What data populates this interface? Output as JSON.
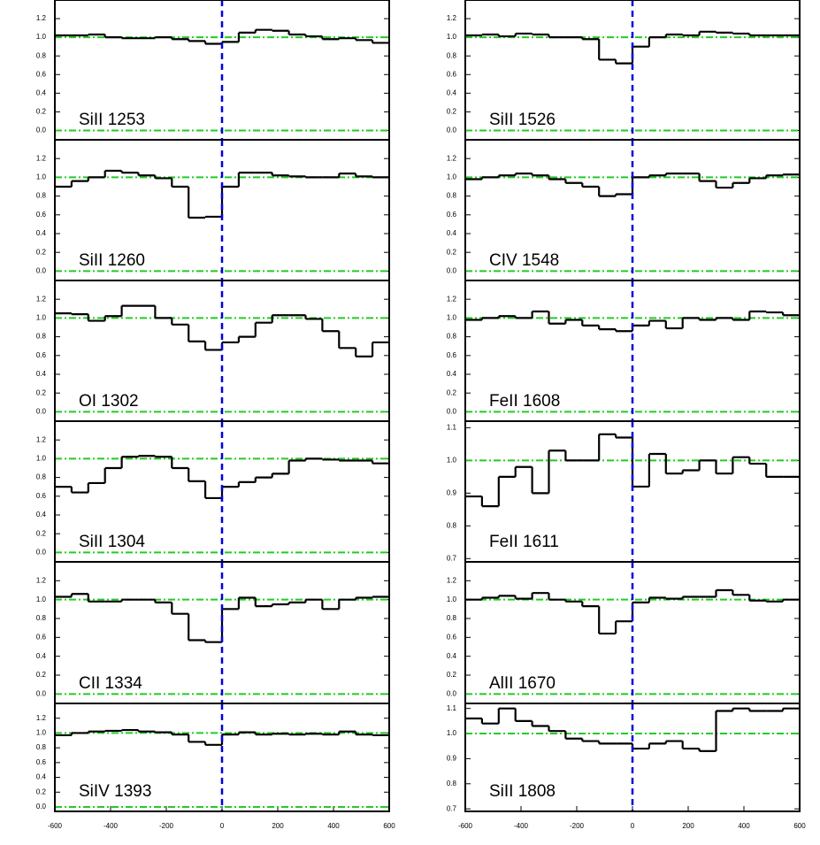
{
  "chart_data": [
    {
      "type": "step",
      "label": "SiII 1253",
      "x": [
        -570,
        -510,
        -450,
        -390,
        -330,
        -270,
        -210,
        -150,
        -90,
        -30,
        30,
        90,
        150,
        210,
        270,
        330,
        390,
        450,
        510,
        570
      ],
      "values": [
        1.02,
        1.02,
        1.03,
        1.0,
        0.99,
        0.99,
        1.0,
        0.98,
        0.96,
        0.93,
        0.95,
        1.05,
        1.08,
        1.07,
        1.03,
        1.01,
        0.98,
        0.99,
        0.97,
        0.94
      ],
      "color": "#000000",
      "xlim": [
        -600,
        600
      ],
      "ylim": [
        -0.1,
        1.4
      ],
      "yticks": [
        {
          "value": 0,
          "label": "0.0"
        },
        0.2,
        0.4,
        0.6,
        0.8,
        {
          "value": 1,
          "label": "1.0"
        },
        1.2
      ],
      "vline": 0,
      "hlines": [
        0,
        1
      ]
    },
    {
      "type": "step",
      "label": "SiII 1526",
      "x": [
        -570,
        -510,
        -450,
        -390,
        -330,
        -270,
        -210,
        -150,
        -90,
        -30,
        30,
        90,
        150,
        210,
        270,
        330,
        390,
        450,
        510,
        570
      ],
      "values": [
        1.02,
        1.03,
        1.01,
        1.04,
        1.03,
        1.0,
        1.0,
        0.98,
        0.76,
        0.72,
        0.9,
        1.0,
        1.03,
        1.02,
        1.06,
        1.05,
        1.04,
        1.02,
        1.02,
        1.02
      ],
      "color": "#000000",
      "xlim": [
        -600,
        600
      ],
      "ylim": [
        -0.1,
        1.4
      ],
      "yticks": [
        {
          "value": 0,
          "label": "0.0"
        },
        0.2,
        0.4,
        0.6,
        0.8,
        {
          "value": 1,
          "label": "1.0"
        },
        1.2
      ],
      "vline": 0,
      "hlines": [
        0,
        1
      ]
    },
    {
      "type": "step",
      "label": "SiII 1260",
      "x": [
        -570,
        -510,
        -450,
        -390,
        -330,
        -270,
        -210,
        -150,
        -90,
        -30,
        30,
        90,
        150,
        210,
        270,
        330,
        390,
        450,
        510,
        570
      ],
      "values": [
        0.9,
        0.96,
        1.0,
        1.07,
        1.05,
        1.02,
        0.99,
        0.9,
        0.57,
        0.58,
        0.9,
        1.05,
        1.05,
        1.02,
        1.01,
        1.0,
        1.0,
        1.04,
        1.01,
        1.0
      ],
      "color": "#000000",
      "xlim": [
        -600,
        600
      ],
      "ylim": [
        -0.1,
        1.4
      ],
      "yticks": [
        {
          "value": 0,
          "label": "0.0"
        },
        0.2,
        0.4,
        0.6,
        0.8,
        {
          "value": 1,
          "label": "1.0"
        },
        1.2
      ],
      "vline": 0,
      "hlines": [
        0,
        1
      ]
    },
    {
      "type": "step",
      "label": "CIV 1548",
      "x": [
        -570,
        -510,
        -450,
        -390,
        -330,
        -270,
        -210,
        -150,
        -90,
        -30,
        30,
        90,
        150,
        210,
        270,
        330,
        390,
        450,
        510,
        570
      ],
      "values": [
        0.98,
        1.0,
        1.02,
        1.04,
        1.02,
        0.98,
        0.94,
        0.9,
        0.8,
        0.82,
        1.0,
        1.02,
        1.04,
        1.04,
        0.96,
        0.89,
        0.94,
        0.99,
        1.02,
        1.03
      ],
      "color": "#000000",
      "xlim": [
        -600,
        600
      ],
      "ylim": [
        -0.1,
        1.4
      ],
      "yticks": [
        {
          "value": 0,
          "label": "0.0"
        },
        0.2,
        0.4,
        0.6,
        0.8,
        {
          "value": 1,
          "label": "1.0"
        },
        1.2
      ],
      "vline": 0,
      "hlines": [
        0,
        1
      ]
    },
    {
      "type": "step",
      "label": "OI 1302",
      "x": [
        -570,
        -510,
        -450,
        -390,
        -330,
        -270,
        -210,
        -150,
        -90,
        -30,
        30,
        90,
        150,
        210,
        270,
        330,
        390,
        450,
        510,
        570
      ],
      "values": [
        1.05,
        1.04,
        0.97,
        1.02,
        1.13,
        1.13,
        1.0,
        0.93,
        0.75,
        0.66,
        0.74,
        0.8,
        0.95,
        1.03,
        1.03,
        0.99,
        0.86,
        0.68,
        0.59,
        0.74
      ],
      "color": "#000000",
      "xlim": [
        -600,
        600
      ],
      "ylim": [
        -0.1,
        1.4
      ],
      "yticks": [
        {
          "value": 0,
          "label": "0.0"
        },
        0.2,
        0.4,
        0.6,
        0.8,
        {
          "value": 1,
          "label": "1.0"
        },
        1.2
      ],
      "vline": 0,
      "hlines": [
        0,
        1
      ]
    },
    {
      "type": "step",
      "label": "FeII 1608",
      "x": [
        -570,
        -510,
        -450,
        -390,
        -330,
        -270,
        -210,
        -150,
        -90,
        -30,
        30,
        90,
        150,
        210,
        270,
        330,
        390,
        450,
        510,
        570
      ],
      "values": [
        0.98,
        1.0,
        1.02,
        1.0,
        1.07,
        0.94,
        0.98,
        0.92,
        0.88,
        0.86,
        0.92,
        0.97,
        0.89,
        1.0,
        0.98,
        1.0,
        0.98,
        1.07,
        1.06,
        1.03
      ],
      "color": "#000000",
      "xlim": [
        -600,
        600
      ],
      "ylim": [
        -0.1,
        1.4
      ],
      "yticks": [
        {
          "value": 0,
          "label": "0.0"
        },
        0.2,
        0.4,
        0.6,
        0.8,
        {
          "value": 1,
          "label": "1.0"
        },
        1.2
      ],
      "vline": 0,
      "hlines": [
        0,
        1
      ]
    },
    {
      "type": "step",
      "label": "SiII 1304",
      "x": [
        -570,
        -510,
        -450,
        -390,
        -330,
        -270,
        -210,
        -150,
        -90,
        -30,
        30,
        90,
        150,
        210,
        270,
        330,
        390,
        450,
        510,
        570
      ],
      "values": [
        0.7,
        0.64,
        0.74,
        0.9,
        1.02,
        1.03,
        1.02,
        0.9,
        0.76,
        0.58,
        0.7,
        0.75,
        0.8,
        0.84,
        0.98,
        1.0,
        0.99,
        0.98,
        0.98,
        0.95
      ],
      "color": "#000000",
      "xlim": [
        -600,
        600
      ],
      "ylim": [
        -0.1,
        1.4
      ],
      "yticks": [
        {
          "value": 0,
          "label": "0.0"
        },
        0.2,
        0.4,
        0.6,
        0.8,
        {
          "value": 1,
          "label": "1.0"
        },
        1.2
      ],
      "vline": 0,
      "hlines": [
        0,
        1
      ]
    },
    {
      "type": "step",
      "label": "FeII 1611",
      "x": [
        -570,
        -510,
        -450,
        -390,
        -330,
        -270,
        -210,
        -150,
        -90,
        -30,
        30,
        90,
        150,
        210,
        270,
        330,
        390,
        450,
        510,
        570
      ],
      "values": [
        0.89,
        0.86,
        0.95,
        0.98,
        0.9,
        1.03,
        1.0,
        1.0,
        1.08,
        1.07,
        0.92,
        1.02,
        0.96,
        0.97,
        1.0,
        0.96,
        1.01,
        0.99,
        0.95,
        0.95
      ],
      "color": "#000000",
      "xlim": [
        -600,
        600
      ],
      "ylim": [
        0.69,
        1.12
      ],
      "yticks": [
        0.7,
        0.8,
        0.9,
        {
          "value": 1,
          "label": "1.0"
        },
        1.1
      ],
      "vline": 0,
      "hlines": [
        1
      ]
    },
    {
      "type": "step",
      "label": "CII 1334",
      "x": [
        -570,
        -510,
        -450,
        -390,
        -330,
        -270,
        -210,
        -150,
        -90,
        -30,
        30,
        90,
        150,
        210,
        270,
        330,
        390,
        450,
        510,
        570
      ],
      "values": [
        1.03,
        1.06,
        0.98,
        0.98,
        1.0,
        1.0,
        0.97,
        0.85,
        0.57,
        0.55,
        0.9,
        1.02,
        0.93,
        0.95,
        0.97,
        1.0,
        0.9,
        1.0,
        1.02,
        1.03
      ],
      "color": "#000000",
      "xlim": [
        -600,
        600
      ],
      "ylim": [
        -0.1,
        1.4
      ],
      "yticks": [
        {
          "value": 0,
          "label": "0.0"
        },
        0.2,
        0.4,
        0.6,
        0.8,
        {
          "value": 1,
          "label": "1.0"
        },
        1.2
      ],
      "vline": 0,
      "hlines": [
        0,
        1
      ]
    },
    {
      "type": "step",
      "label": "AlII 1670",
      "x": [
        -570,
        -510,
        -450,
        -390,
        -330,
        -270,
        -210,
        -150,
        -90,
        -30,
        30,
        90,
        150,
        210,
        270,
        330,
        390,
        450,
        510,
        570
      ],
      "values": [
        1.0,
        1.02,
        1.04,
        1.01,
        1.07,
        1.0,
        0.98,
        0.93,
        0.64,
        0.77,
        0.97,
        1.02,
        1.01,
        1.03,
        1.03,
        1.1,
        1.05,
        0.99,
        0.98,
        1.0
      ],
      "color": "#000000",
      "xlim": [
        -600,
        600
      ],
      "ylim": [
        -0.1,
        1.4
      ],
      "yticks": [
        {
          "value": 0,
          "label": "0.0"
        },
        0.2,
        0.4,
        0.6,
        0.8,
        {
          "value": 1,
          "label": "1.0"
        },
        1.2
      ],
      "vline": 0,
      "hlines": [
        0,
        1
      ]
    },
    {
      "type": "step",
      "label": "SiIV 1393",
      "x": [
        -570,
        -510,
        -450,
        -390,
        -330,
        -270,
        -210,
        -150,
        -90,
        -30,
        30,
        90,
        150,
        210,
        270,
        330,
        390,
        450,
        510,
        570
      ],
      "values": [
        0.97,
        1.0,
        1.02,
        1.03,
        1.04,
        1.02,
        1.01,
        0.98,
        0.88,
        0.84,
        0.98,
        1.01,
        0.98,
        0.99,
        0.98,
        0.99,
        0.98,
        1.02,
        0.98,
        0.97
      ],
      "color": "#000000",
      "xlim": [
        -600,
        600
      ],
      "ylim": [
        -0.06,
        1.4
      ],
      "yticks": [
        {
          "value": 0,
          "label": "0.0"
        },
        0.2,
        0.4,
        0.6,
        0.8,
        {
          "value": 1,
          "label": "1.0"
        },
        1.2
      ],
      "xticks": [
        -600,
        -400,
        -200,
        0,
        200,
        400,
        600
      ],
      "vline": 0,
      "hlines": [
        0,
        1
      ]
    },
    {
      "type": "step",
      "label": "SiII 1808",
      "x": [
        -570,
        -510,
        -450,
        -390,
        -330,
        -270,
        -210,
        -150,
        -90,
        -30,
        30,
        90,
        150,
        210,
        270,
        330,
        390,
        450,
        510,
        570
      ],
      "values": [
        1.06,
        1.04,
        1.1,
        1.05,
        1.03,
        1.01,
        0.98,
        0.97,
        0.96,
        0.96,
        0.94,
        0.96,
        0.97,
        0.94,
        0.93,
        1.09,
        1.1,
        1.09,
        1.09,
        1.1
      ],
      "color": "#000000",
      "xlim": [
        -600,
        600
      ],
      "ylim": [
        0.69,
        1.12
      ],
      "yticks": [
        0.7,
        0.8,
        0.9,
        {
          "value": 1,
          "label": "1.0"
        },
        1.1
      ],
      "xticks": [
        -600,
        -400,
        -200,
        0,
        200,
        400,
        600
      ],
      "vline": 0,
      "hlines": [
        1
      ]
    }
  ]
}
